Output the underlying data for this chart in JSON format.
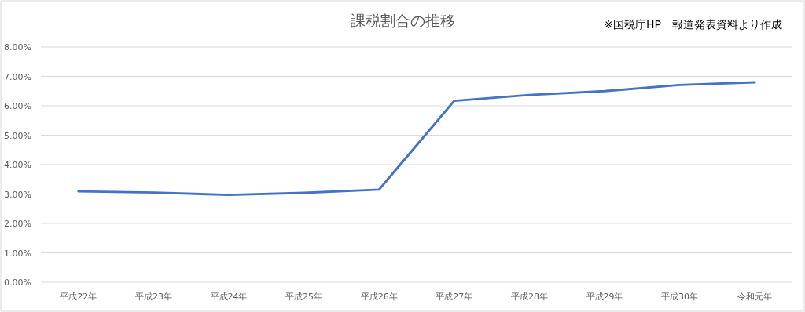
{
  "chart_data": {
    "type": "line",
    "title": "課税割合の推移",
    "annotations": [
      "※国税庁HP　報道発表資料より作成"
    ],
    "categories": [
      "平成22年",
      "平成23年",
      "平成24年",
      "平成25年",
      "平成26年",
      "平成27年",
      "平成28年",
      "平成29年",
      "平成30年",
      "令和元年"
    ],
    "series": [
      {
        "color": "#4472c4",
        "values": [
          3.09,
          3.05,
          2.97,
          3.04,
          3.15,
          6.17,
          6.37,
          6.5,
          6.71,
          6.8
        ]
      }
    ],
    "ylim": [
      0,
      8
    ],
    "yticks": [
      {
        "value": 0,
        "label": "0.00%"
      },
      {
        "value": 1,
        "label": "1.00%"
      },
      {
        "value": 2,
        "label": "2.00%"
      },
      {
        "value": 3,
        "label": "3.00%"
      },
      {
        "value": 4,
        "label": "4.00%"
      },
      {
        "value": 5,
        "label": "5.00%"
      },
      {
        "value": 6,
        "label": "6.00%"
      },
      {
        "value": 7,
        "label": "7.00%"
      },
      {
        "value": 8,
        "label": "8.00%"
      }
    ],
    "grid": "y",
    "marker": "none",
    "line_style": "solid"
  }
}
